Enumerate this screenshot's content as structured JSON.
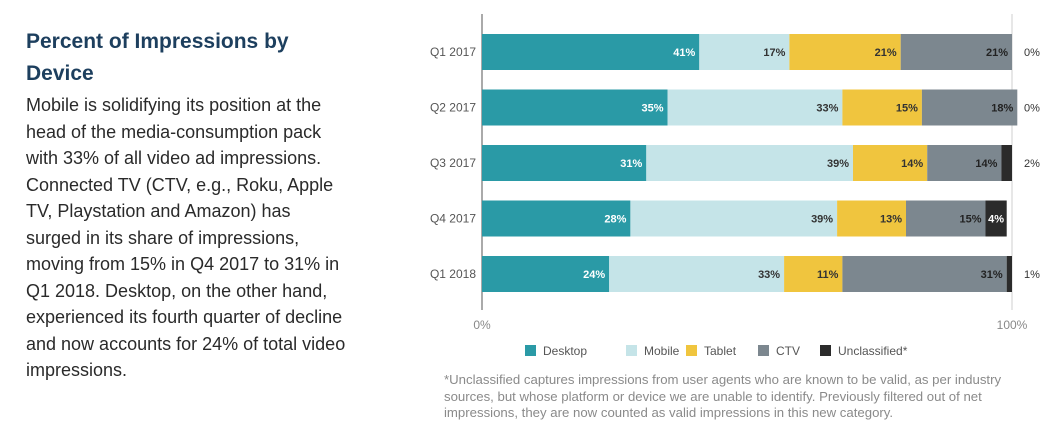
{
  "text": {
    "heading": "Percent of Impressions by Device",
    "body": "Mobile is solidifying its position at the head of the media-consumption pack with 33% of all video ad impressions. Connected TV (CTV, e.g., Roku, Apple TV, Playstation and Amazon) has surged in its share of impressions, moving from 15% in Q4 2017 to 31% in Q1 2018. Desktop, on the other hand, experienced its fourth quarter of decline and now accounts for 24% of total video impressions.",
    "footnote": "*Unclassified captures impressions from user agents who are known to be valid, as per industry sources, but whose platform or device we are unable to identify. Previously filtered out of net impressions, they are now counted as valid impressions in this new category."
  },
  "chart_data": {
    "type": "bar",
    "orientation": "horizontal",
    "stacked": true,
    "categories": [
      "Q1 2017",
      "Q2 2017",
      "Q3 2017",
      "Q4 2017",
      "Q1 2018"
    ],
    "series": [
      {
        "name": "Desktop",
        "color": "#2a9aa6",
        "label_color": "#ffffff",
        "values": [
          41,
          35,
          31,
          28,
          24
        ]
      },
      {
        "name": "Mobile",
        "color": "#c5e4e8",
        "label_color": "#333333",
        "values": [
          17,
          33,
          39,
          39,
          33
        ]
      },
      {
        "name": "Tablet",
        "color": "#f0c53e",
        "label_color": "#333333",
        "values": [
          21,
          15,
          14,
          13,
          11
        ]
      },
      {
        "name": "CTV",
        "color": "#7c878f",
        "label_color": "#222222",
        "values": [
          21,
          18,
          14,
          15,
          31
        ]
      },
      {
        "name": "Unclassified*",
        "color": "#2b2b2b",
        "label_color": "#ffffff",
        "values": [
          0,
          0,
          2,
          4,
          1
        ]
      }
    ],
    "bar_labels": [
      [
        "41%",
        "17%",
        "21%",
        "21%",
        "0%"
      ],
      [
        "35%",
        "33%",
        "15%",
        "18%",
        "0%"
      ],
      [
        "31%",
        "39%",
        "14%",
        "14%",
        "2%"
      ],
      [
        "28%",
        "39%",
        "13%",
        "15%",
        "4%"
      ],
      [
        "24%",
        "33%",
        "11%",
        "31%",
        "1%"
      ]
    ],
    "x_ticks": [
      "0%",
      "100%"
    ],
    "xlim": [
      0,
      100
    ],
    "legend_position": "bottom"
  }
}
